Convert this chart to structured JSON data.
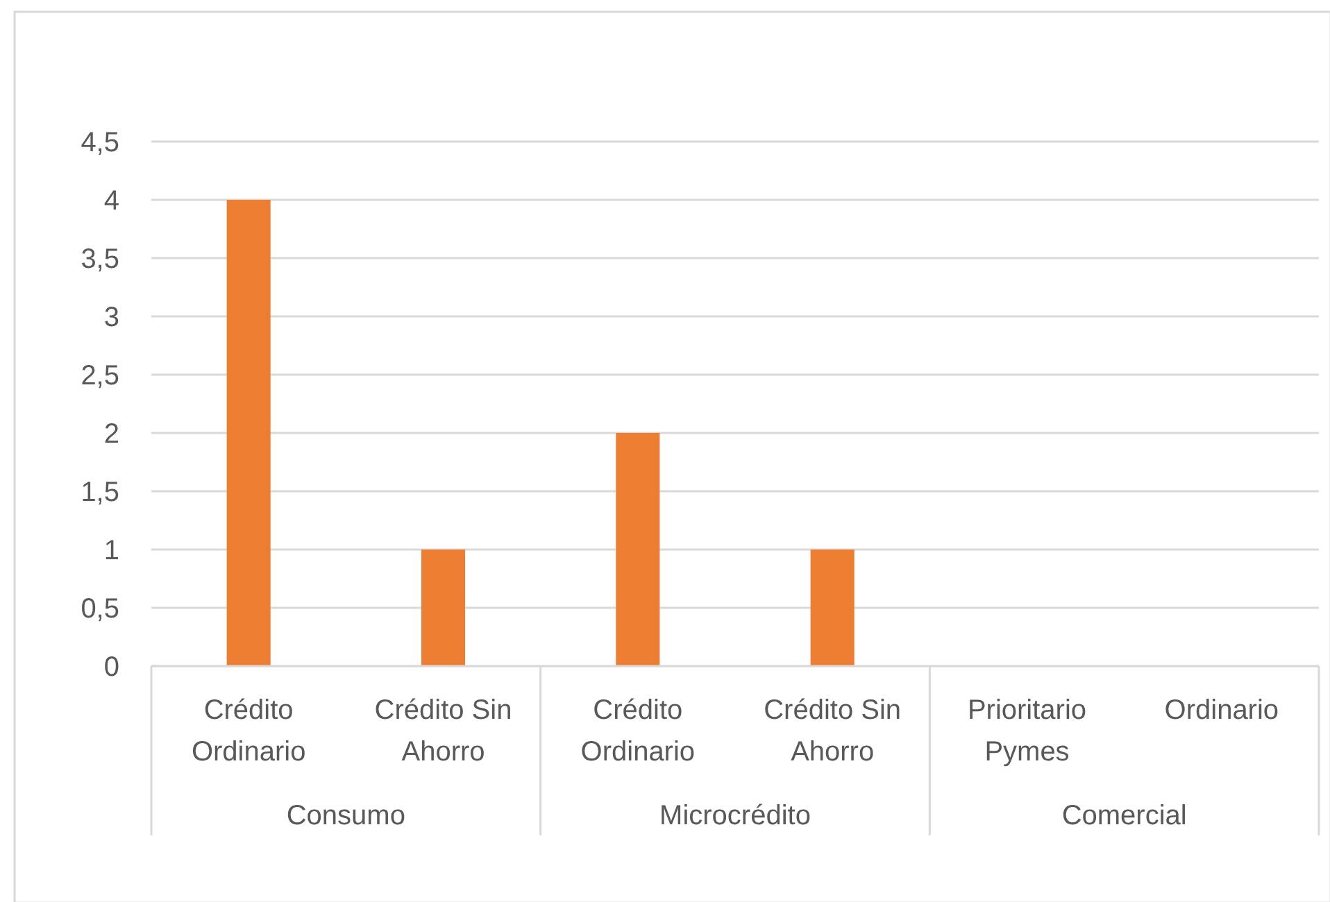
{
  "chart_data": {
    "type": "bar",
    "categories": [
      "Crédito Ordinario",
      "Crédito Sin Ahorro",
      "Crédito Ordinario",
      "Crédito Sin Ahorro",
      "Prioritario Pymes",
      "Ordinario"
    ],
    "values": [
      4,
      1,
      2,
      1,
      null,
      null
    ],
    "color": "#ed7d31",
    "ylim": [
      0,
      4.5
    ],
    "yticks": [
      0,
      {
        "value": 0.5,
        "label": "0,5"
      },
      1,
      {
        "value": 1.5,
        "label": "1,5"
      },
      2,
      {
        "value": 2.5,
        "label": "2,5"
      },
      3,
      {
        "value": 3.5,
        "label": "3,5"
      },
      4,
      {
        "value": 4.5,
        "label": "4,5"
      }
    ],
    "grid": "y",
    "annotations": [
      "Consumo",
      "Microcrédito",
      "Comercial"
    ]
  }
}
